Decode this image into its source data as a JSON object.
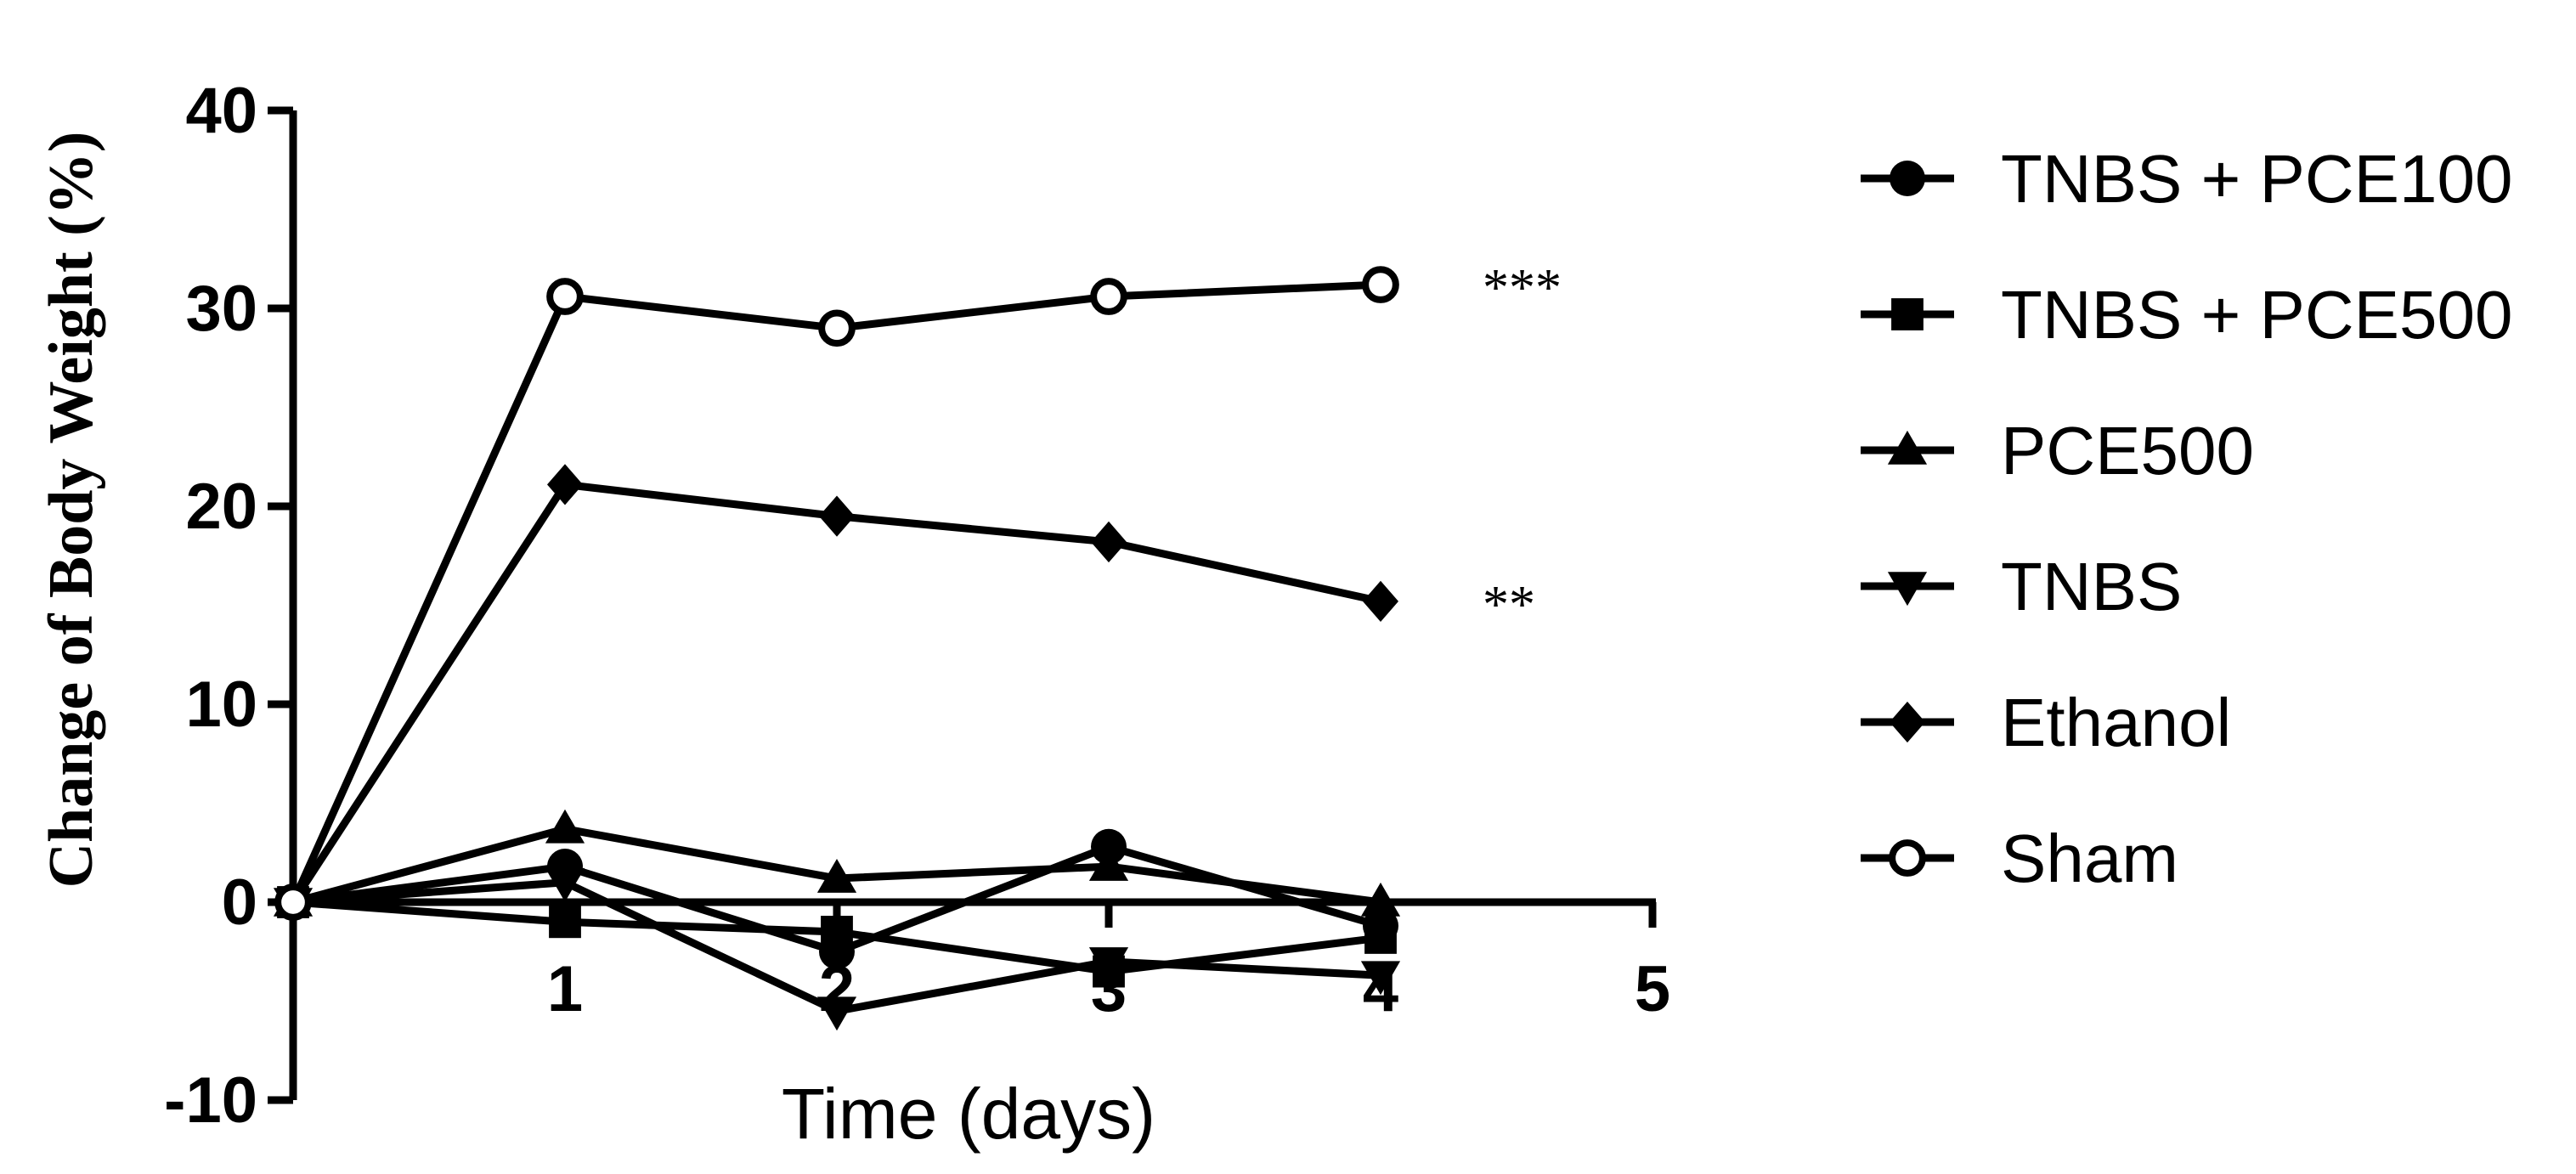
{
  "chart_data": {
    "type": "line",
    "title": "",
    "xlabel": "Time (days)",
    "ylabel": "Change of Body Weight (%)",
    "xlim": [
      0,
      5
    ],
    "ylim": [
      -10,
      40
    ],
    "x_ticks": [
      1,
      2,
      3,
      4,
      5
    ],
    "x_tick_labels": [
      "1",
      "2",
      "3",
      "4",
      "5"
    ],
    "y_ticks": [
      -10,
      0,
      10,
      20,
      30,
      40
    ],
    "y_tick_labels": [
      "-10",
      "0",
      "10",
      "20",
      "30",
      "40"
    ],
    "grid": false,
    "legend_position": "right",
    "x": [
      0,
      1,
      2,
      3,
      4
    ],
    "series": [
      {
        "name": "TNBS + PCE100",
        "marker": "filled-circle",
        "values": [
          0,
          1.8,
          -2.5,
          2.8,
          -1.2
        ]
      },
      {
        "name": "TNBS + PCE500",
        "marker": "filled-square",
        "values": [
          0,
          -1.0,
          -1.5,
          -3.5,
          -1.8
        ]
      },
      {
        "name": "PCE500",
        "marker": "filled-triangle-up",
        "values": [
          0,
          3.7,
          1.2,
          1.8,
          0.0
        ]
      },
      {
        "name": "TNBS",
        "marker": "filled-triangle-down",
        "values": [
          0,
          1.0,
          -5.5,
          -3.0,
          -3.7
        ]
      },
      {
        "name": "Ethanol",
        "marker": "filled-diamond",
        "values": [
          0,
          21.1,
          19.5,
          18.2,
          15.2
        ]
      },
      {
        "name": "Sham",
        "marker": "open-circle",
        "values": [
          0,
          30.6,
          29.0,
          30.6,
          31.2
        ]
      }
    ],
    "annotations": [
      {
        "text": "***",
        "series": "Sham"
      },
      {
        "text": "**",
        "series": "Ethanol"
      }
    ],
    "colors": {
      "line": "#000000",
      "marker_fill": "#000000",
      "open_marker_fill": "#ffffff"
    }
  }
}
